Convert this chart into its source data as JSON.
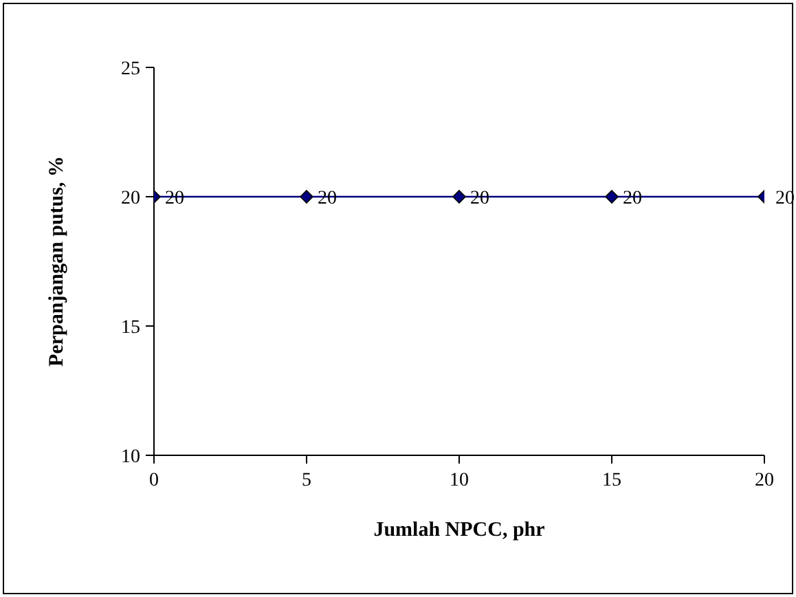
{
  "chart_data": {
    "type": "line",
    "xlabel": "Jumlah NPCC, phr",
    "ylabel": "Perpanjangan putus, %",
    "x": [
      0,
      5,
      10,
      15,
      20
    ],
    "series": [
      {
        "color": "#000080",
        "values": [
          20,
          20,
          20,
          20,
          20
        ]
      }
    ],
    "xlim": [
      0,
      20
    ],
    "xticks": [
      0,
      5,
      10,
      15,
      20
    ],
    "ylim": [
      10,
      25
    ],
    "yticks": [
      10,
      15,
      20,
      25
    ],
    "marker": "diamond",
    "data_labels": true,
    "grid": false,
    "legend": false
  }
}
